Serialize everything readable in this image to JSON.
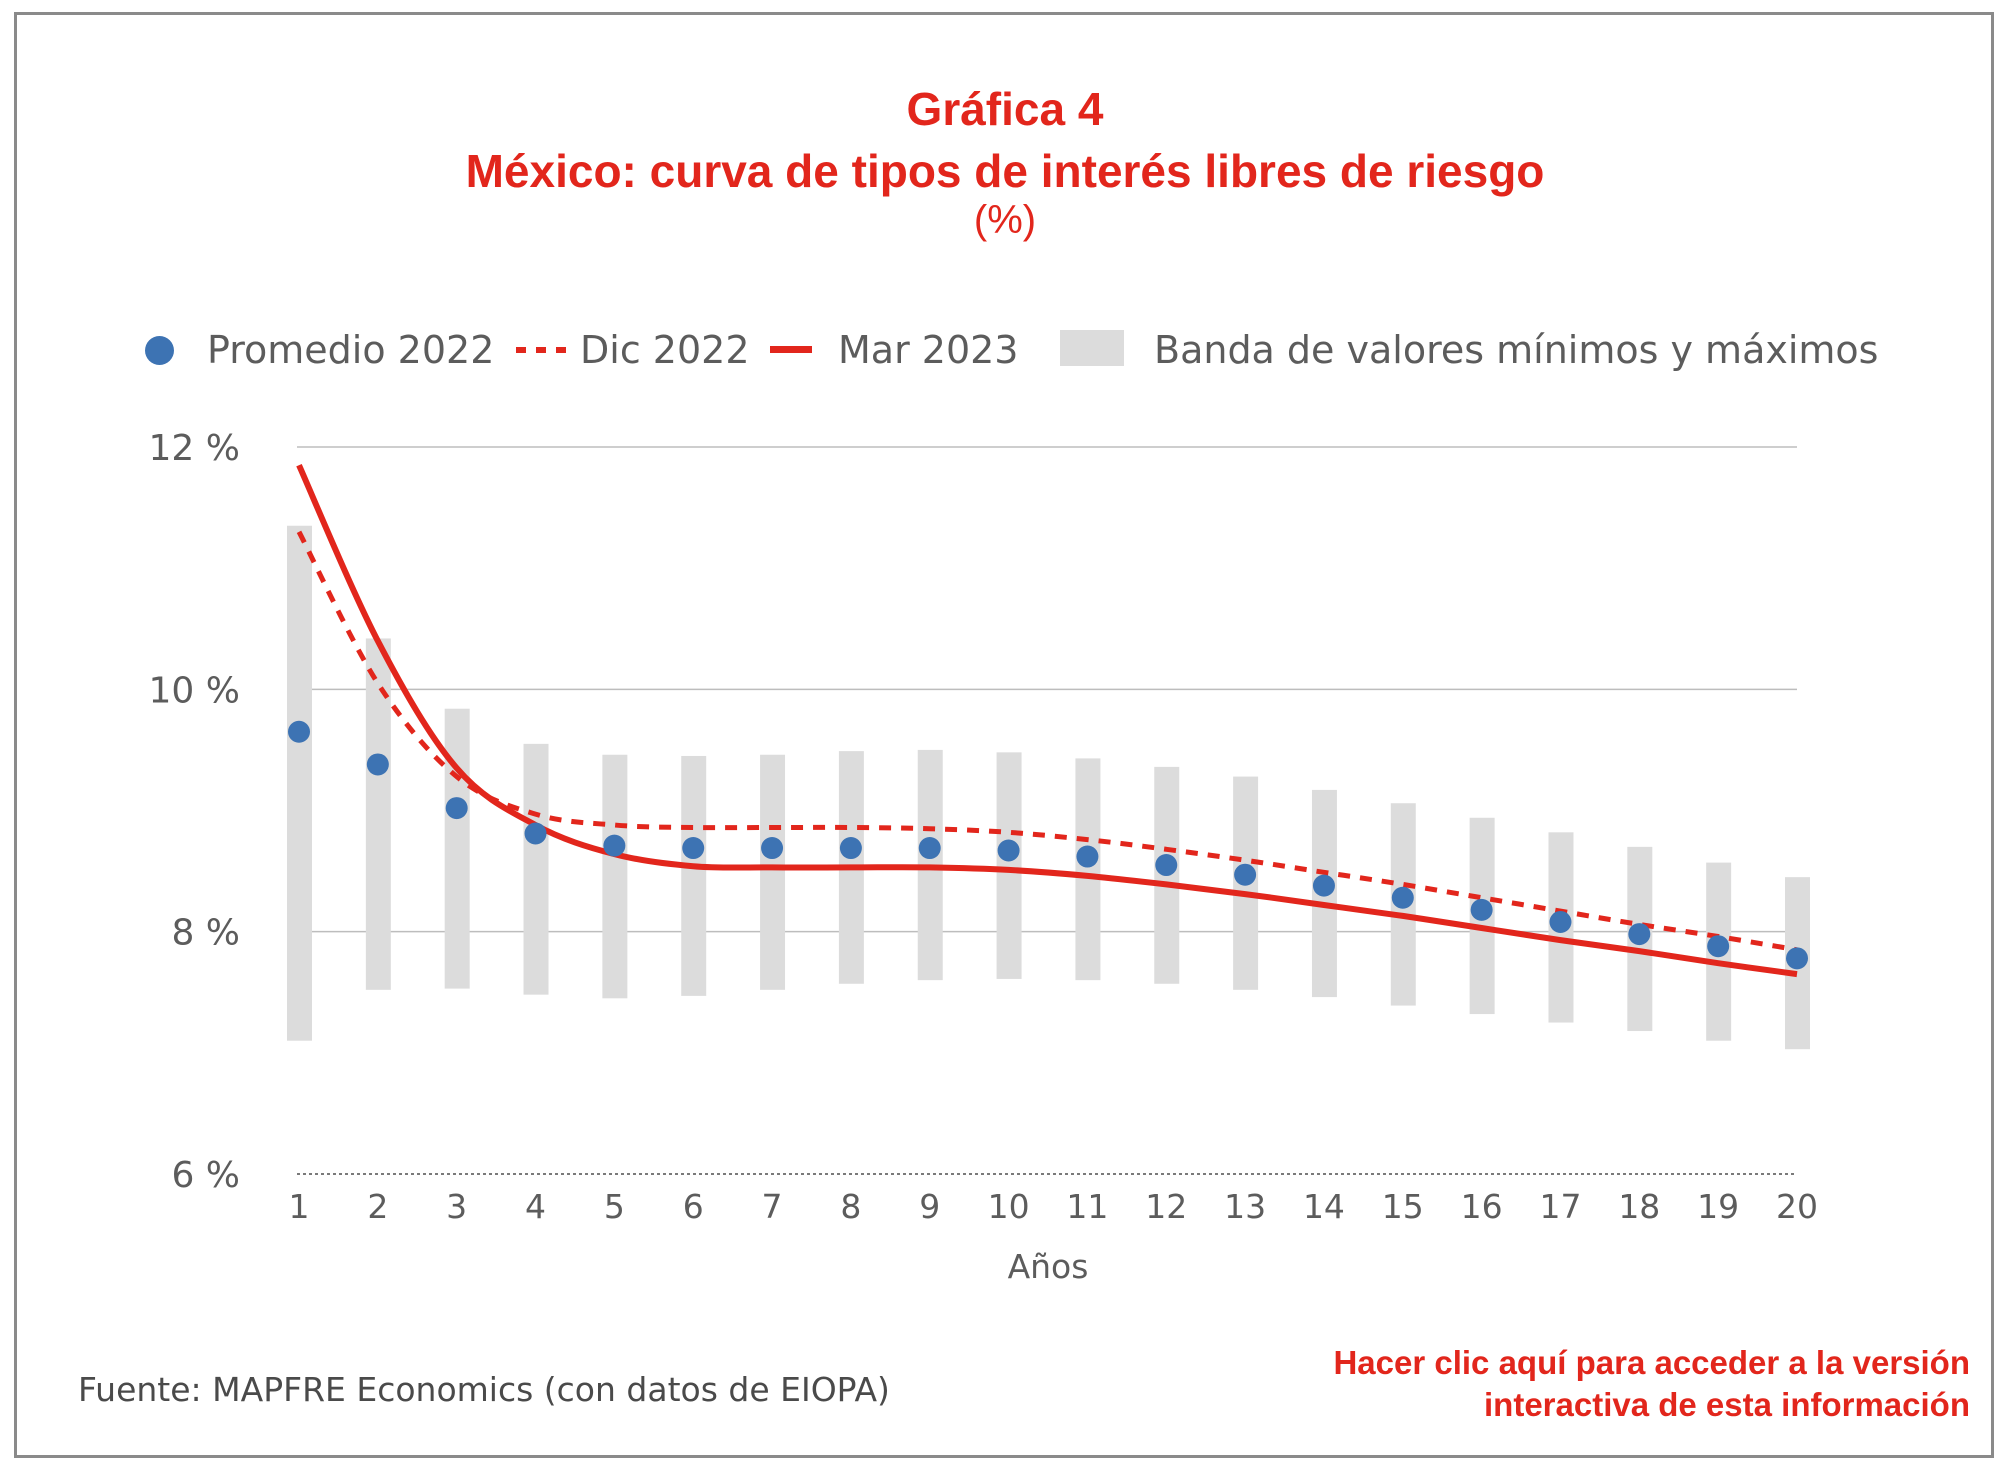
{
  "header": {
    "title": "Gráfica 4",
    "subtitle": "México: curva de tipos de interés libres de riesgo",
    "unit": "(%)"
  },
  "legend": {
    "promedio": "Promedio 2022",
    "dic": "Dic 2022",
    "mar": "Mar 2023",
    "band": "Banda de valores mínimos y máximos"
  },
  "footer": {
    "source": "Fuente: MAPFRE Economics (con datos de EIOPA)",
    "link_line1": "Hacer clic aquí para acceder a la versión",
    "link_line2": "interactiva de esta información"
  },
  "colors": {
    "accent": "#e2261c",
    "dot": "#3d73b3",
    "band": "#dcdcdc"
  },
  "chart_data": {
    "type": "line",
    "xlabel": "Años",
    "ylabel": "",
    "x": [
      1,
      2,
      3,
      4,
      5,
      6,
      7,
      8,
      9,
      10,
      11,
      12,
      13,
      14,
      15,
      16,
      17,
      18,
      19,
      20
    ],
    "ylim": [
      6,
      12
    ],
    "yticks": [
      6,
      8,
      10,
      12
    ],
    "ytick_labels": [
      "6 %",
      "8 %",
      "10 %",
      "12 %"
    ],
    "grid": true,
    "legend_position": "top",
    "series": [
      {
        "name": "Promedio 2022",
        "style": "dots",
        "values": [
          9.65,
          9.38,
          9.02,
          8.81,
          8.71,
          8.69,
          8.69,
          8.69,
          8.69,
          8.67,
          8.62,
          8.55,
          8.47,
          8.38,
          8.28,
          8.18,
          8.08,
          7.98,
          7.88,
          7.78
        ]
      },
      {
        "name": "Dic 2022",
        "style": "dashed",
        "values": [
          11.3,
          10.05,
          9.28,
          8.97,
          8.88,
          8.86,
          8.86,
          8.86,
          8.85,
          8.82,
          8.76,
          8.68,
          8.59,
          8.49,
          8.39,
          8.28,
          8.17,
          8.06,
          7.96,
          7.85
        ]
      },
      {
        "name": "Mar 2023",
        "style": "solid",
        "values": [
          11.85,
          10.4,
          9.35,
          8.88,
          8.64,
          8.54,
          8.53,
          8.53,
          8.53,
          8.51,
          8.46,
          8.39,
          8.31,
          8.22,
          8.13,
          8.03,
          7.93,
          7.84,
          7.74,
          7.65
        ]
      },
      {
        "name": "Banda de valores mínimos y máximos",
        "style": "band",
        "min": [
          7.1,
          7.52,
          7.53,
          7.48,
          7.45,
          7.47,
          7.52,
          7.57,
          7.6,
          7.61,
          7.6,
          7.57,
          7.52,
          7.46,
          7.39,
          7.32,
          7.25,
          7.18,
          7.1,
          7.03
        ],
        "max": [
          11.35,
          10.42,
          9.84,
          9.55,
          9.46,
          9.45,
          9.46,
          9.49,
          9.5,
          9.48,
          9.43,
          9.36,
          9.28,
          9.17,
          9.06,
          8.94,
          8.82,
          8.7,
          8.57,
          8.45
        ]
      }
    ]
  }
}
